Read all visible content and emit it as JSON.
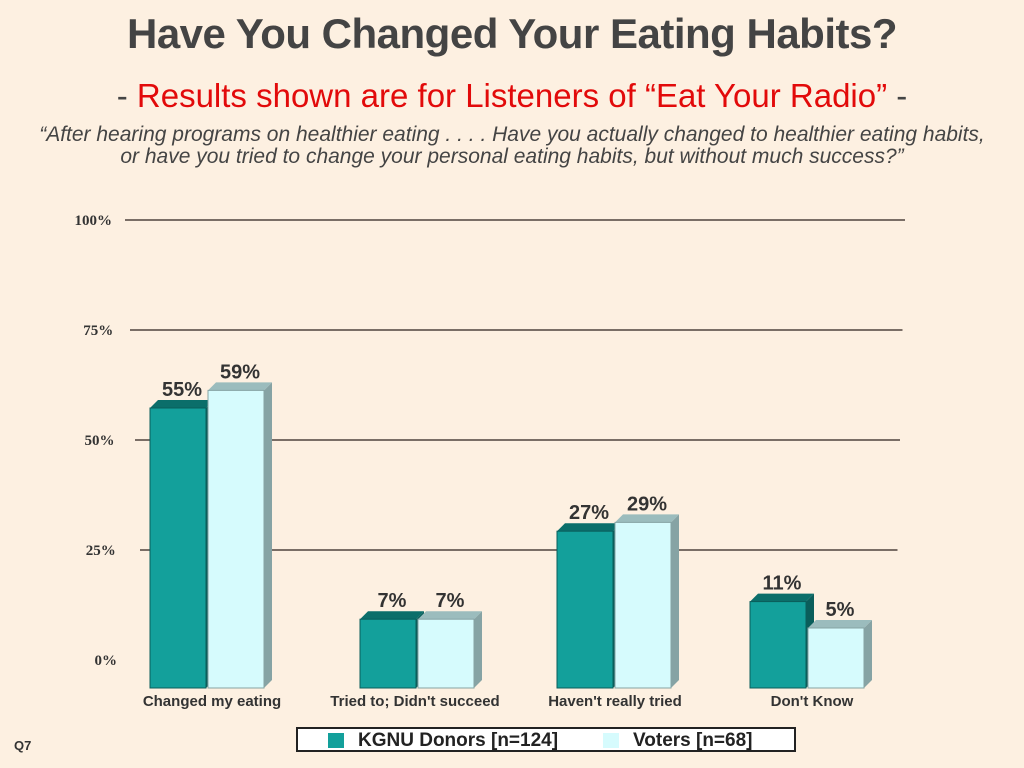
{
  "title": "Have You Changed Your Eating Habits?",
  "subtitle": {
    "prefix": "- ",
    "text": "Results shown are for Listeners of “Eat Your Radio”",
    "suffix": " -"
  },
  "question": "“After hearing programs on healthier eating . . . . Have you actually changed to healthier eating habits, or have you tried to change your personal eating habits, but without much success?”",
  "question_id": "Q7",
  "colors": {
    "donors": "#13a09b",
    "voters": "#d6fbfd",
    "grid": "#7a6e66",
    "title": "#444444",
    "accent": "#e20a0a"
  },
  "chart_data": {
    "type": "bar",
    "title": "Have You Changed Your Eating Habits?",
    "xlabel": "",
    "ylabel": "",
    "ylim": [
      0,
      100
    ],
    "yticks": [
      0,
      25,
      50,
      75,
      100
    ],
    "ytick_labels": [
      "0%",
      "25%",
      "50%",
      "75%",
      "100%"
    ],
    "grid": true,
    "legend": "bottom",
    "categories": [
      "Changed my eating",
      "Tried to;  Didn't succeed",
      "Haven't really tried",
      "Don't Know"
    ],
    "series": [
      {
        "name": "KGNU Donors [n=124]",
        "values": [
          55,
          7,
          27,
          11
        ],
        "labels": [
          "55%",
          "7%",
          "27%",
          "11%"
        ]
      },
      {
        "name": "Voters  [n=68]",
        "values": [
          59,
          7,
          29,
          5
        ],
        "labels": [
          "59%",
          "7%",
          "29%",
          "5%"
        ]
      }
    ]
  }
}
